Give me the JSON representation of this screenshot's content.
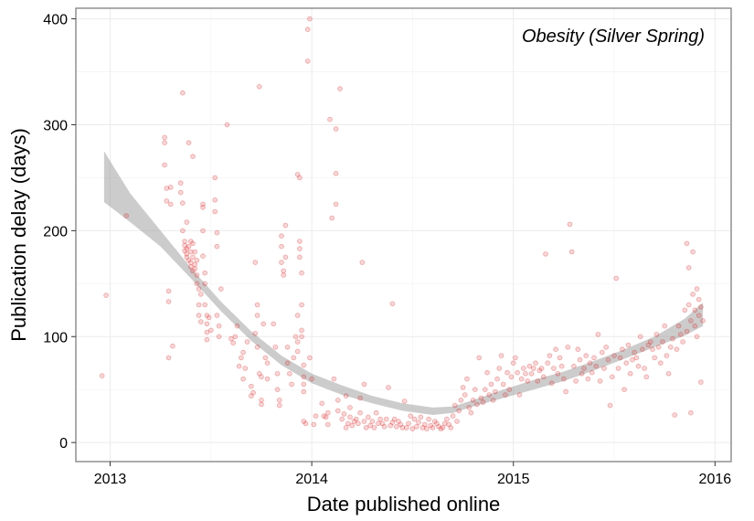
{
  "chart_data": {
    "type": "scatter",
    "annotation": "Obesity (Silver Spring)",
    "xlabel": "Date published online",
    "ylabel": "Publication delay (days)",
    "xlim": [
      2012.83,
      2016.08
    ],
    "ylim": [
      -18,
      410
    ],
    "x_ticks": [
      2013,
      2014,
      2015,
      2016
    ],
    "x_tick_labels": [
      "2013",
      "2014",
      "2015",
      "2016"
    ],
    "y_ticks": [
      0,
      100,
      200,
      300,
      400
    ],
    "y_tick_labels": [
      "0",
      "100",
      "200",
      "300",
      "400"
    ],
    "grid": true,
    "point_color": "#e41a1c",
    "band_color": "#999999",
    "points": [
      [
        2012.96,
        63
      ],
      [
        2012.98,
        139
      ],
      [
        2013.08,
        214
      ],
      [
        2013.27,
        288
      ],
      [
        2013.27,
        283
      ],
      [
        2013.27,
        262
      ],
      [
        2013.28,
        240
      ],
      [
        2013.28,
        228
      ],
      [
        2013.29,
        143
      ],
      [
        2013.29,
        133
      ],
      [
        2013.29,
        80
      ],
      [
        2013.3,
        225
      ],
      [
        2013.3,
        241
      ],
      [
        2013.31,
        91
      ],
      [
        2013.35,
        245
      ],
      [
        2013.35,
        236
      ],
      [
        2013.36,
        330
      ],
      [
        2013.36,
        226
      ],
      [
        2013.36,
        200
      ],
      [
        2013.37,
        190
      ],
      [
        2013.37,
        186
      ],
      [
        2013.37,
        181
      ],
      [
        2013.38,
        178
      ],
      [
        2013.38,
        183
      ],
      [
        2013.38,
        175
      ],
      [
        2013.38,
        208
      ],
      [
        2013.39,
        283
      ],
      [
        2013.39,
        185
      ],
      [
        2013.39,
        172
      ],
      [
        2013.4,
        180
      ],
      [
        2013.4,
        190
      ],
      [
        2013.4,
        170
      ],
      [
        2013.4,
        166
      ],
      [
        2013.41,
        162
      ],
      [
        2013.41,
        175
      ],
      [
        2013.41,
        188
      ],
      [
        2013.41,
        270
      ],
      [
        2013.42,
        180
      ],
      [
        2013.42,
        164
      ],
      [
        2013.42,
        168
      ],
      [
        2013.43,
        172
      ],
      [
        2013.43,
        158
      ],
      [
        2013.43,
        150
      ],
      [
        2013.44,
        145
      ],
      [
        2013.44,
        130
      ],
      [
        2013.44,
        120
      ],
      [
        2013.45,
        114
      ],
      [
        2013.45,
        140
      ],
      [
        2013.46,
        225
      ],
      [
        2013.46,
        222
      ],
      [
        2013.46,
        200
      ],
      [
        2013.46,
        176
      ],
      [
        2013.47,
        160
      ],
      [
        2013.47,
        150
      ],
      [
        2013.47,
        130
      ],
      [
        2013.48,
        120
      ],
      [
        2013.48,
        112
      ],
      [
        2013.48,
        104
      ],
      [
        2013.48,
        97
      ],
      [
        2013.49,
        118
      ],
      [
        2013.5,
        106
      ],
      [
        2013.52,
        250
      ],
      [
        2013.52,
        229
      ],
      [
        2013.52,
        218
      ],
      [
        2013.53,
        198
      ],
      [
        2013.53,
        185
      ],
      [
        2013.53,
        120
      ],
      [
        2013.54,
        110
      ],
      [
        2013.54,
        100
      ],
      [
        2013.55,
        145
      ],
      [
        2013.58,
        300
      ],
      [
        2013.6,
        98
      ],
      [
        2013.61,
        94
      ],
      [
        2013.62,
        100
      ],
      [
        2013.63,
        110
      ],
      [
        2013.64,
        72
      ],
      [
        2013.65,
        80
      ],
      [
        2013.66,
        60
      ],
      [
        2013.66,
        85
      ],
      [
        2013.67,
        70
      ],
      [
        2013.68,
        95
      ],
      [
        2013.7,
        53
      ],
      [
        2013.7,
        44
      ],
      [
        2013.71,
        47
      ],
      [
        2013.72,
        170
      ],
      [
        2013.72,
        103
      ],
      [
        2013.73,
        130
      ],
      [
        2013.73,
        120
      ],
      [
        2013.73,
        90
      ],
      [
        2013.74,
        336
      ],
      [
        2013.74,
        65
      ],
      [
        2013.75,
        62
      ],
      [
        2013.75,
        40
      ],
      [
        2013.75,
        36
      ],
      [
        2013.76,
        112
      ],
      [
        2013.77,
        80
      ],
      [
        2013.78,
        75
      ],
      [
        2013.78,
        60
      ],
      [
        2013.81,
        112
      ],
      [
        2013.82,
        90
      ],
      [
        2013.83,
        65
      ],
      [
        2013.83,
        50
      ],
      [
        2013.84,
        35
      ],
      [
        2013.84,
        40
      ],
      [
        2013.85,
        195
      ],
      [
        2013.85,
        185
      ],
      [
        2013.85,
        170
      ],
      [
        2013.86,
        162
      ],
      [
        2013.86,
        158
      ],
      [
        2013.87,
        205
      ],
      [
        2013.87,
        175
      ],
      [
        2013.88,
        90
      ],
      [
        2013.88,
        75
      ],
      [
        2013.89,
        65
      ],
      [
        2013.9,
        55
      ],
      [
        2013.91,
        80
      ],
      [
        2013.92,
        100
      ],
      [
        2013.93,
        120
      ],
      [
        2013.93,
        95
      ],
      [
        2013.93,
        86
      ],
      [
        2013.93,
        253
      ],
      [
        2013.94,
        250
      ],
      [
        2013.94,
        190
      ],
      [
        2013.94,
        183
      ],
      [
        2013.94,
        175
      ],
      [
        2013.95,
        160
      ],
      [
        2013.95,
        130
      ],
      [
        2013.95,
        106
      ],
      [
        2013.95,
        100
      ],
      [
        2013.96,
        73
      ],
      [
        2013.96,
        62
      ],
      [
        2013.96,
        55
      ],
      [
        2013.96,
        48
      ],
      [
        2013.96,
        20
      ],
      [
        2013.97,
        18
      ],
      [
        2013.98,
        360
      ],
      [
        2013.98,
        390
      ],
      [
        2013.99,
        400
      ],
      [
        2013.99,
        80
      ],
      [
        2014.0,
        60
      ],
      [
        2014.01,
        17
      ],
      [
        2014.02,
        25
      ],
      [
        2014.05,
        37
      ],
      [
        2014.06,
        25
      ],
      [
        2014.07,
        24
      ],
      [
        2014.08,
        28
      ],
      [
        2014.08,
        17
      ],
      [
        2014.09,
        305
      ],
      [
        2014.1,
        212
      ],
      [
        2014.11,
        60
      ],
      [
        2014.12,
        296
      ],
      [
        2014.12,
        254
      ],
      [
        2014.12,
        225
      ],
      [
        2014.13,
        40
      ],
      [
        2014.13,
        30
      ],
      [
        2014.14,
        334
      ],
      [
        2014.15,
        22
      ],
      [
        2014.16,
        27
      ],
      [
        2014.17,
        44
      ],
      [
        2014.17,
        14
      ],
      [
        2014.18,
        18
      ],
      [
        2014.19,
        33
      ],
      [
        2014.19,
        24
      ],
      [
        2014.2,
        16
      ],
      [
        2014.21,
        20
      ],
      [
        2014.22,
        22
      ],
      [
        2014.23,
        18
      ],
      [
        2014.24,
        42
      ],
      [
        2014.24,
        28
      ],
      [
        2014.25,
        170
      ],
      [
        2014.26,
        55
      ],
      [
        2014.26,
        20
      ],
      [
        2014.27,
        14
      ],
      [
        2014.28,
        24
      ],
      [
        2014.29,
        16
      ],
      [
        2014.3,
        20
      ],
      [
        2014.31,
        14
      ],
      [
        2014.32,
        28
      ],
      [
        2014.33,
        18
      ],
      [
        2014.34,
        22
      ],
      [
        2014.35,
        18
      ],
      [
        2014.36,
        15
      ],
      [
        2014.37,
        22
      ],
      [
        2014.38,
        52
      ],
      [
        2014.39,
        16
      ],
      [
        2014.4,
        131
      ],
      [
        2014.4,
        19
      ],
      [
        2014.41,
        22
      ],
      [
        2014.42,
        15
      ],
      [
        2014.43,
        20
      ],
      [
        2014.44,
        17
      ],
      [
        2014.45,
        14
      ],
      [
        2014.46,
        39
      ],
      [
        2014.47,
        14
      ],
      [
        2014.48,
        18
      ],
      [
        2014.49,
        25
      ],
      [
        2014.5,
        13
      ],
      [
        2014.51,
        22
      ],
      [
        2014.52,
        15
      ],
      [
        2014.53,
        19
      ],
      [
        2014.54,
        24
      ],
      [
        2014.55,
        14
      ],
      [
        2014.56,
        17
      ],
      [
        2014.57,
        13
      ],
      [
        2014.58,
        22
      ],
      [
        2014.59,
        16
      ],
      [
        2014.6,
        14
      ],
      [
        2014.61,
        20
      ],
      [
        2014.62,
        18
      ],
      [
        2014.63,
        15
      ],
      [
        2014.64,
        13
      ],
      [
        2014.65,
        14
      ],
      [
        2014.66,
        18
      ],
      [
        2014.67,
        22
      ],
      [
        2014.68,
        17
      ],
      [
        2014.69,
        14
      ],
      [
        2014.7,
        25
      ],
      [
        2014.71,
        35
      ],
      [
        2014.72,
        20
      ],
      [
        2014.73,
        30
      ],
      [
        2014.74,
        40
      ],
      [
        2014.75,
        52
      ],
      [
        2014.76,
        45
      ],
      [
        2014.77,
        60
      ],
      [
        2014.78,
        33
      ],
      [
        2014.79,
        28
      ],
      [
        2014.8,
        40
      ],
      [
        2014.81,
        50
      ],
      [
        2014.82,
        36
      ],
      [
        2014.83,
        80
      ],
      [
        2014.84,
        42
      ],
      [
        2014.85,
        38
      ],
      [
        2014.86,
        50
      ],
      [
        2014.87,
        66
      ],
      [
        2014.88,
        45
      ],
      [
        2014.89,
        55
      ],
      [
        2014.9,
        40
      ],
      [
        2014.91,
        48
      ],
      [
        2014.92,
        60
      ],
      [
        2014.93,
        70
      ],
      [
        2014.94,
        82
      ],
      [
        2014.95,
        55
      ],
      [
        2014.96,
        45
      ],
      [
        2014.97,
        66
      ],
      [
        2014.98,
        50
      ],
      [
        2014.99,
        62
      ],
      [
        2015.0,
        75
      ],
      [
        2015.01,
        80
      ],
      [
        2015.02,
        66
      ],
      [
        2015.03,
        45
      ],
      [
        2015.04,
        60
      ],
      [
        2015.05,
        70
      ],
      [
        2015.06,
        65
      ],
      [
        2015.07,
        58
      ],
      [
        2015.08,
        72
      ],
      [
        2015.09,
        65
      ],
      [
        2015.1,
        70
      ],
      [
        2015.11,
        75
      ],
      [
        2015.12,
        58
      ],
      [
        2015.13,
        68
      ],
      [
        2015.14,
        70
      ],
      [
        2015.15,
        62
      ],
      [
        2015.16,
        178
      ],
      [
        2015.17,
        75
      ],
      [
        2015.18,
        82
      ],
      [
        2015.19,
        56
      ],
      [
        2015.2,
        70
      ],
      [
        2015.21,
        88
      ],
      [
        2015.22,
        65
      ],
      [
        2015.23,
        80
      ],
      [
        2015.24,
        72
      ],
      [
        2015.25,
        60
      ],
      [
        2015.26,
        48
      ],
      [
        2015.27,
        90
      ],
      [
        2015.28,
        206
      ],
      [
        2015.29,
        180
      ],
      [
        2015.3,
        72
      ],
      [
        2015.31,
        58
      ],
      [
        2015.32,
        88
      ],
      [
        2015.33,
        78
      ],
      [
        2015.34,
        65
      ],
      [
        2015.35,
        70
      ],
      [
        2015.36,
        82
      ],
      [
        2015.37,
        60
      ],
      [
        2015.38,
        75
      ],
      [
        2015.39,
        66
      ],
      [
        2015.4,
        80
      ],
      [
        2015.41,
        72
      ],
      [
        2015.42,
        102
      ],
      [
        2015.43,
        58
      ],
      [
        2015.44,
        85
      ],
      [
        2015.45,
        70
      ],
      [
        2015.46,
        90
      ],
      [
        2015.47,
        78
      ],
      [
        2015.48,
        35
      ],
      [
        2015.49,
        62
      ],
      [
        2015.5,
        82
      ],
      [
        2015.51,
        155
      ],
      [
        2015.52,
        70
      ],
      [
        2015.53,
        80
      ],
      [
        2015.54,
        88
      ],
      [
        2015.55,
        50
      ],
      [
        2015.56,
        75
      ],
      [
        2015.57,
        92
      ],
      [
        2015.58,
        65
      ],
      [
        2015.59,
        78
      ],
      [
        2015.6,
        85
      ],
      [
        2015.61,
        80
      ],
      [
        2015.62,
        72
      ],
      [
        2015.63,
        100
      ],
      [
        2015.64,
        88
      ],
      [
        2015.65,
        70
      ],
      [
        2015.66,
        62
      ],
      [
        2015.67,
        92
      ],
      [
        2015.68,
        95
      ],
      [
        2015.69,
        88
      ],
      [
        2015.7,
        80
      ],
      [
        2015.71,
        102
      ],
      [
        2015.72,
        90
      ],
      [
        2015.73,
        75
      ],
      [
        2015.74,
        95
      ],
      [
        2015.75,
        110
      ],
      [
        2015.76,
        82
      ],
      [
        2015.77,
        65
      ],
      [
        2015.78,
        90
      ],
      [
        2015.79,
        98
      ],
      [
        2015.8,
        26
      ],
      [
        2015.81,
        88
      ],
      [
        2015.82,
        110
      ],
      [
        2015.83,
        102
      ],
      [
        2015.84,
        95
      ],
      [
        2015.85,
        125
      ],
      [
        2015.86,
        105
      ],
      [
        2015.86,
        188
      ],
      [
        2015.87,
        165
      ],
      [
        2015.87,
        130
      ],
      [
        2015.88,
        28
      ],
      [
        2015.88,
        115
      ],
      [
        2015.89,
        180
      ],
      [
        2015.89,
        140
      ],
      [
        2015.9,
        125
      ],
      [
        2015.9,
        110
      ],
      [
        2015.91,
        100
      ],
      [
        2015.91,
        145
      ],
      [
        2015.92,
        120
      ],
      [
        2015.92,
        135
      ],
      [
        2015.93,
        57
      ],
      [
        2015.93,
        128
      ],
      [
        2015.94,
        115
      ]
    ],
    "smooth_band": {
      "x": [
        2012.97,
        2013.1,
        2013.25,
        2013.4,
        2013.55,
        2013.7,
        2013.85,
        2014.0,
        2014.15,
        2014.3,
        2014.45,
        2014.6,
        2014.7,
        2014.8,
        2014.95,
        2015.1,
        2015.25,
        2015.4,
        2015.55,
        2015.7,
        2015.85,
        2015.94
      ],
      "upper": [
        275,
        235,
        200,
        165,
        133,
        105,
        82,
        65,
        54,
        44,
        37,
        33,
        34,
        40,
        50,
        59,
        67,
        77,
        88,
        100,
        117,
        132
      ],
      "lower": [
        227,
        208,
        185,
        155,
        124,
        96,
        73,
        56,
        45,
        37,
        30,
        26,
        28,
        34,
        42,
        50,
        58,
        68,
        79,
        90,
        101,
        110
      ]
    }
  }
}
